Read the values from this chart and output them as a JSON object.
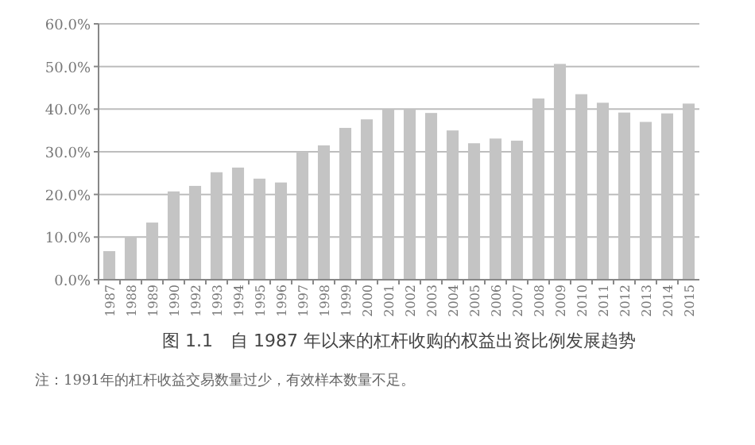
{
  "chart_data": {
    "type": "bar",
    "title": "图 1.1　自 1987 年以来的杠杆收购的权益出资比例发展趋势",
    "categories": [
      "1987",
      "1988",
      "1989",
      "1990",
      "1992",
      "1993",
      "1994",
      "1995",
      "1996",
      "1997",
      "1998",
      "1999",
      "2000",
      "2001",
      "2002",
      "2003",
      "2004",
      "2005",
      "2006",
      "2007",
      "2008",
      "2009",
      "2010",
      "2011",
      "2012",
      "2013",
      "2014",
      "2015"
    ],
    "values": [
      6.7,
      10.0,
      13.4,
      20.7,
      22.0,
      25.2,
      26.3,
      23.7,
      22.8,
      30.0,
      31.5,
      35.6,
      37.6,
      40.0,
      40.0,
      39.1,
      35.0,
      32.0,
      33.1,
      32.6,
      42.5,
      50.6,
      43.5,
      41.5,
      39.2,
      37.0,
      39.0,
      41.3
    ],
    "color": "#c4c4c4",
    "ylim": [
      0,
      60
    ],
    "yticks": [
      {
        "value": 0,
        "label": "0.0%"
      },
      {
        "value": 10,
        "label": "10.0%"
      },
      {
        "value": 20,
        "label": "20.0%"
      },
      {
        "value": 30,
        "label": "30.0%"
      },
      {
        "value": 40,
        "label": "40.0%"
      },
      {
        "value": 50,
        "label": "50.0%"
      },
      {
        "value": 60,
        "label": "60.0%"
      }
    ],
    "grid": "y",
    "annotations": [
      "注：1991年的杠杆收益交易数量过少，有效样本数量不足。"
    ]
  }
}
